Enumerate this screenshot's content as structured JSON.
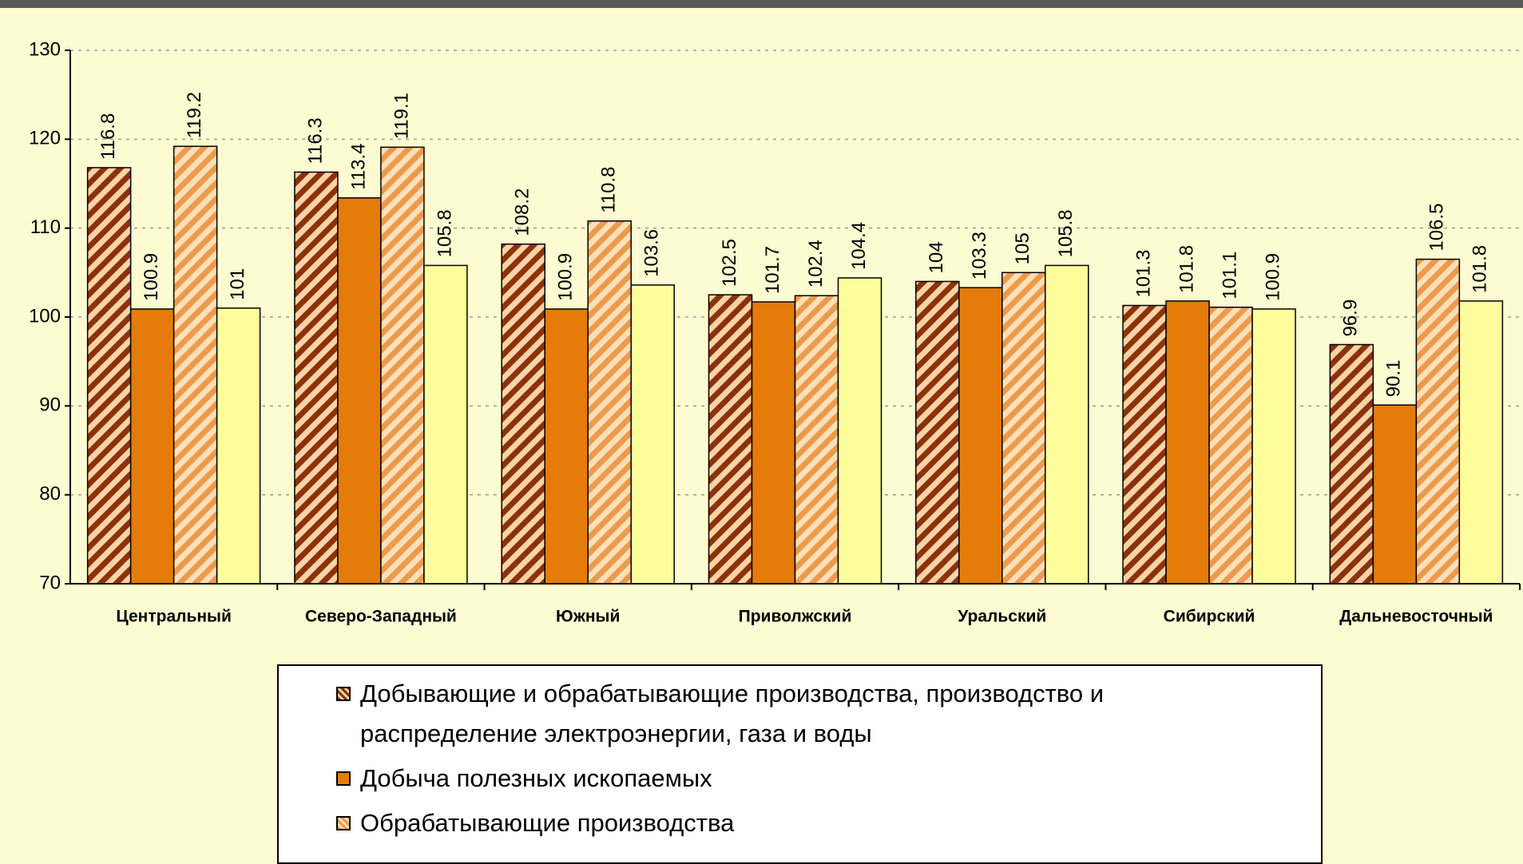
{
  "chart_data": {
    "type": "bar",
    "categories": [
      "Центральный",
      "Северо-Западный",
      "Южный",
      "Приволжский",
      "Уральский",
      "Сибирский",
      "Дальневосточный"
    ],
    "series": [
      {
        "name": "Добывающие и обрабатывающие производства, производство и распределение электроэнергии, газа и воды",
        "color": "#fbd3a8",
        "hatch": "#8b3209",
        "values": [
          116.8,
          116.3,
          108.2,
          102.5,
          104,
          101.3,
          96.9
        ]
      },
      {
        "name": "Добыча полезных ископаемых",
        "color": "#e47b0a",
        "values": [
          100.9,
          113.4,
          100.9,
          101.7,
          103.3,
          101.8,
          90.1
        ]
      },
      {
        "name": "Обрабатывающие производства",
        "color": "#fde0b8",
        "hatch": "#ee9a4a",
        "values": [
          119.2,
          119.1,
          110.8,
          102.4,
          105,
          101.1,
          106.5
        ]
      },
      {
        "color": "#fdfd9c",
        "values": [
          101,
          105.8,
          103.6,
          104.4,
          105.8,
          100.9,
          101.8
        ]
      }
    ],
    "ylim": [
      70,
      130
    ],
    "yticks": [
      70,
      80,
      90,
      100,
      110,
      120,
      130
    ],
    "grid": true
  }
}
